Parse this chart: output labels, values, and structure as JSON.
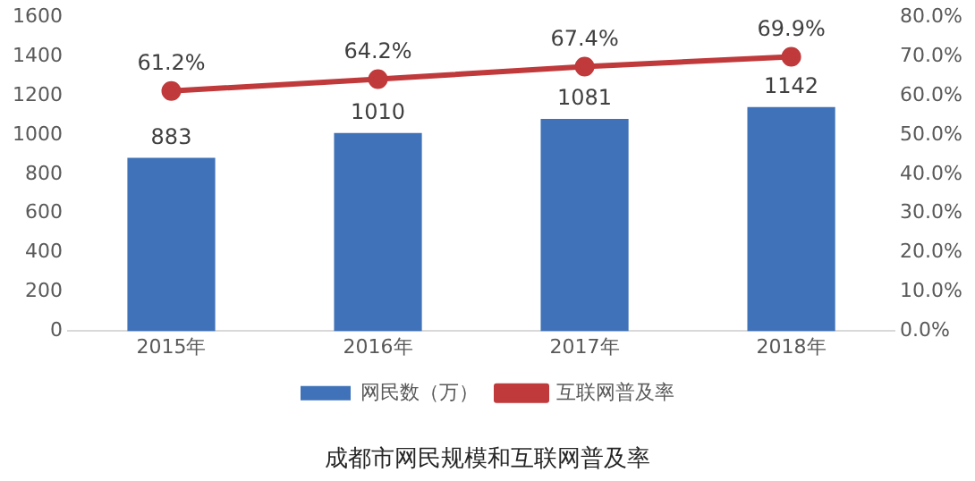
{
  "chart_data": {
    "type": "bar",
    "title": "成都市网民规模和互联网普及率",
    "categories": [
      "2015年",
      "2016年",
      "2017年",
      "2018年"
    ],
    "series": [
      {
        "name": "网民数（万）",
        "color": "#3f72b8",
        "values": [
          883,
          1010,
          1081,
          1142
        ],
        "value_labels": [
          "883",
          "1010",
          "1081",
          "1142"
        ]
      },
      {
        "name": "互联网普及率",
        "type": "line",
        "axis": "y2",
        "color": "#c0393b",
        "marker": "circle",
        "values": [
          61.2,
          64.2,
          67.4,
          69.9
        ],
        "value_labels": [
          "61.2%",
          "64.2%",
          "67.4%",
          "69.9%"
        ]
      }
    ],
    "ylim": [
      0,
      1600
    ],
    "yticks": [
      0,
      200,
      400,
      600,
      800,
      1000,
      1200,
      1400,
      1600
    ],
    "y2lim": [
      0,
      80
    ],
    "y2ticks": [
      {
        "value": 0,
        "label": "0.0%"
      },
      {
        "value": 10,
        "label": "10.0%"
      },
      {
        "value": 20,
        "label": "20.0%"
      },
      {
        "value": 30,
        "label": "30.0%"
      },
      {
        "value": 40,
        "label": "40.0%"
      },
      {
        "value": 50,
        "label": "50.0%"
      },
      {
        "value": 60,
        "label": "60.0%"
      },
      {
        "value": 70,
        "label": "70.0%"
      },
      {
        "value": 80,
        "label": "80.0%"
      }
    ],
    "grid": false,
    "legend": "bottom"
  }
}
